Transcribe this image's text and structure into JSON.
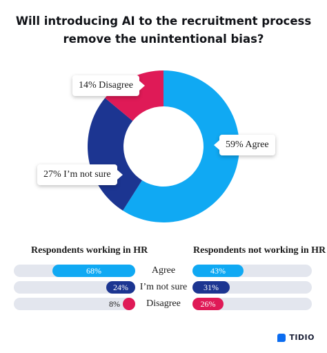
{
  "title_lines": [
    "Will introducing AI to the recruitment process",
    "remove the unintentional bias?"
  ],
  "colors": {
    "agree": "#10a9f3",
    "not_sure": "#1c3591",
    "disagree": "#df1a57",
    "track": "#e3e6ee"
  },
  "chart_data": [
    {
      "type": "pie",
      "donut": true,
      "categories": [
        "Agree",
        "I'm not sure",
        "Disagree"
      ],
      "values": [
        59,
        27,
        14
      ],
      "labels": [
        "59% Agree",
        "27% I’m not sure",
        "14% Disagree"
      ]
    },
    {
      "type": "bar",
      "orientation": "horizontal",
      "categories": [
        "Agree",
        "I’m not sure",
        "Disagree"
      ],
      "series": [
        {
          "name": "Respondents working in HR",
          "values": [
            68,
            24,
            8
          ],
          "labels": [
            "68%",
            "24%",
            "8%"
          ]
        },
        {
          "name": "Respondents not working in HR",
          "values": [
            43,
            31,
            26
          ],
          "labels": [
            "43%",
            "31%",
            "26%"
          ]
        }
      ],
      "ylim": [
        0,
        100
      ]
    }
  ],
  "brand": {
    "logo_text": "TIDIO",
    "logo_icon": "tidio-logo-icon"
  }
}
